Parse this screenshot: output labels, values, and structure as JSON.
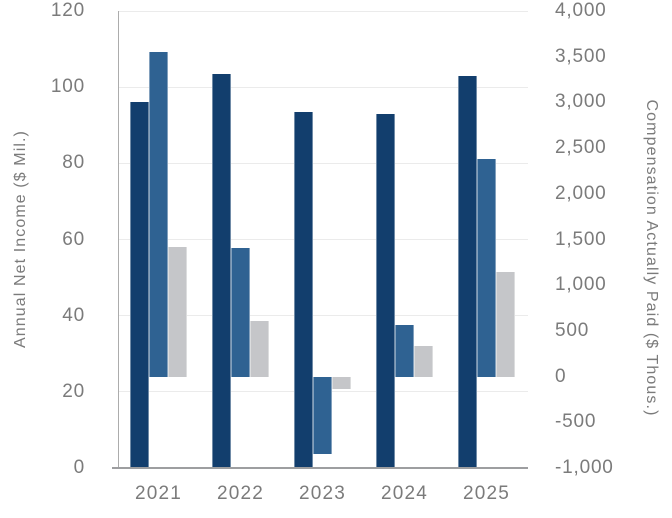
{
  "chart_data": {
    "type": "bar",
    "subtype": "grouped-dual-axis",
    "categories": [
      "2021",
      "2022",
      "2023",
      "2024",
      "2025"
    ],
    "series": [
      {
        "name": "annual-net-income",
        "axis": "left",
        "color_key": "navy",
        "values": [
          96,
          103.5,
          93.5,
          93,
          103
        ]
      },
      {
        "name": "compensation-actually-paid-a",
        "axis": "right",
        "color_key": "blue",
        "values": [
          3550,
          1410,
          -850,
          560,
          2380
        ]
      },
      {
        "name": "compensation-actually-paid-b",
        "axis": "right",
        "color_key": "gray",
        "values": [
          1420,
          610,
          -140,
          330,
          1140
        ]
      }
    ],
    "left_axis": {
      "label": "Annual Net Income ($ Mil.)",
      "min": 0,
      "max": 120,
      "step": 20,
      "ticks": [
        "0",
        "20",
        "40",
        "60",
        "80",
        "100",
        "120"
      ]
    },
    "right_axis": {
      "label": "Compensation Actually Paid ($ Thous.)",
      "min": -1000,
      "max": 4000,
      "step": 500,
      "ticks": [
        "-1,000",
        "-500",
        "0",
        "500",
        "1,000",
        "1,500",
        "2,000",
        "2,500",
        "3,000",
        "3,500",
        "4,000"
      ]
    },
    "xlabel": "",
    "legend": "none",
    "grid": "horizontal-at-left-axis-steps",
    "colors": {
      "navy": "#123E6D",
      "blue": "#2F6292",
      "gray": "#C5C6C9",
      "grid": "#EBEBEB",
      "axis_line": "#9D9EA0",
      "spine": "#ACACAC",
      "text": "#7B7B7B",
      "background": "#FFFFFF"
    }
  }
}
